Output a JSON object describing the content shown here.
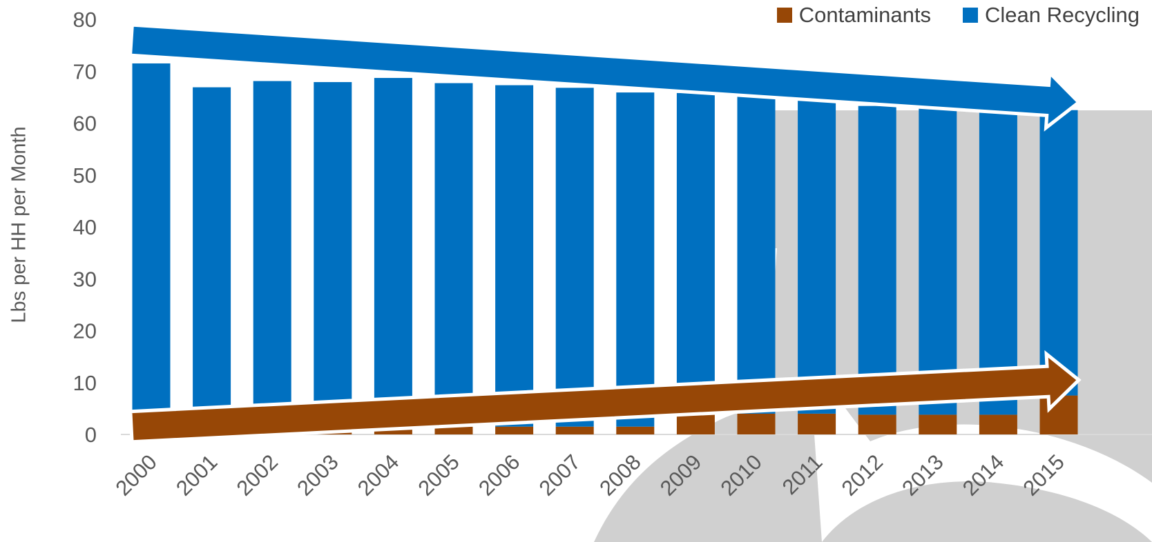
{
  "chart_data": {
    "type": "bar",
    "stacked": true,
    "ylabel": "Lbs per HH per Month",
    "xlabel": "",
    "ylim": [
      0,
      80
    ],
    "yticks": [
      0,
      10,
      20,
      30,
      40,
      50,
      60,
      70,
      80
    ],
    "categories": [
      "2000",
      "2001",
      "2002",
      "2003",
      "2004",
      "2005",
      "2006",
      "2007",
      "2008",
      "2009",
      "2010",
      "2011",
      "2012",
      "2013",
      "2014",
      "2015"
    ],
    "series": [
      {
        "name": "Contaminants",
        "color": "#974706",
        "values": [
          0.3,
          0.3,
          0.4,
          0.8,
          1.5,
          1.5,
          1.5,
          1.5,
          1.5,
          4.0,
          4.0,
          4.0,
          3.8,
          3.8,
          3.8,
          7.5
        ]
      },
      {
        "name": "Clean Recycling",
        "color": "#0070C0",
        "values": [
          71.2,
          66.6,
          67.7,
          67.1,
          67.2,
          66.2,
          65.8,
          65.3,
          64.4,
          61.8,
          61.3,
          60.8,
          59.5,
          59.0,
          59.5,
          55.0
        ]
      }
    ],
    "trend_arrows": [
      {
        "series": "Clean Recycling",
        "direction": "down",
        "from": 76,
        "to": 64,
        "color": "#0070C0"
      },
      {
        "series": "Contaminants",
        "direction": "up",
        "from": 1.5,
        "to": 10.5,
        "color": "#974706"
      }
    ],
    "legend_position": "top-right",
    "grid": false
  }
}
